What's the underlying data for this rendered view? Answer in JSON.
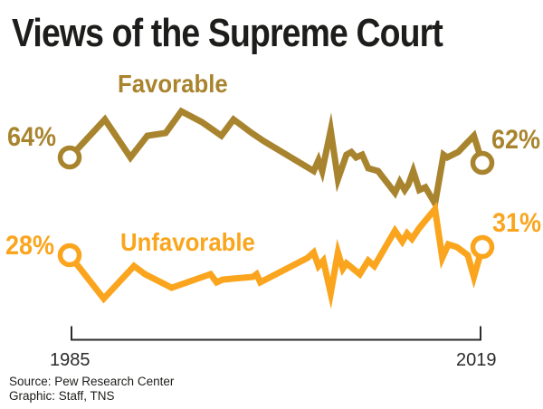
{
  "title": "Views of the Supreme Court",
  "labels": {
    "favorable": "Favorable",
    "unfavorable": "Unfavorable",
    "fav_start": "64%",
    "fav_end": "62%",
    "unfav_start": "28%",
    "unfav_end": "31%",
    "x_start": "1985",
    "x_end": "2019"
  },
  "source": {
    "line1": "Source: Pew Research Center",
    "line2": "Graphic: Staff, TNS"
  },
  "colors": {
    "favorable": "#a9842e",
    "unfavorable": "#faa51d",
    "axis": "#2b2b2b",
    "text": "#1d1d1b"
  },
  "chart_data": {
    "type": "line",
    "title": "Views of the Supreme Court",
    "x_range": [
      1985,
      2019
    ],
    "x_ticks": [
      "1985",
      "2019"
    ],
    "y_unit": "percent favorable/unfavorable opinion",
    "grid": false,
    "legend_position": "inline-labels",
    "endpoint_markers": "open-circle",
    "series": [
      {
        "name": "Favorable",
        "color": "#a9842e",
        "start_label": "64%",
        "end_label": "62%",
        "points": [
          [
            1985,
            64
          ],
          [
            1987.9,
            78
          ],
          [
            1990,
            64
          ],
          [
            1991.4,
            72
          ],
          [
            1992.9,
            73
          ],
          [
            1994.2,
            81
          ],
          [
            1995.9,
            77
          ],
          [
            1997.5,
            72
          ],
          [
            1998.5,
            78
          ],
          [
            2000,
            73
          ],
          [
            2001,
            70
          ],
          [
            2005.1,
            59
          ],
          [
            2005.5,
            63
          ],
          [
            2005.8,
            59
          ],
          [
            2006.5,
            74
          ],
          [
            2007.1,
            56
          ],
          [
            2007.8,
            65
          ],
          [
            2008.2,
            66
          ],
          [
            2008.6,
            64
          ],
          [
            2009.1,
            65
          ],
          [
            2009.6,
            60
          ],
          [
            2010.4,
            59
          ],
          [
            2011.8,
            51
          ],
          [
            2012.2,
            55
          ],
          [
            2012.6,
            52
          ],
          [
            2012.9,
            54
          ],
          [
            2013.3,
            59
          ],
          [
            2013.8,
            52
          ],
          [
            2014.3,
            53
          ],
          [
            2015.1,
            47
          ],
          [
            2015.8,
            65
          ],
          [
            2016.1,
            64
          ],
          [
            2017,
            66
          ],
          [
            2018.3,
            72
          ],
          [
            2019,
            62
          ]
        ]
      },
      {
        "name": "Unfavorable",
        "color": "#faa51d",
        "start_label": "28%",
        "end_label": "31%",
        "points": [
          [
            1985,
            28
          ],
          [
            1987.8,
            12
          ],
          [
            1990.3,
            24
          ],
          [
            1991.2,
            21
          ],
          [
            1993.4,
            16
          ],
          [
            1996.6,
            21
          ],
          [
            1997.1,
            18
          ],
          [
            1997.6,
            19
          ],
          [
            2000.1,
            20
          ],
          [
            2000.4,
            21
          ],
          [
            2000.7,
            18
          ],
          [
            2004.6,
            27
          ],
          [
            2005.1,
            29
          ],
          [
            2005.5,
            24
          ],
          [
            2005.9,
            26
          ],
          [
            2006.5,
            14
          ],
          [
            2007.1,
            29
          ],
          [
            2007.5,
            23
          ],
          [
            2007.8,
            25
          ],
          [
            2008.9,
            21
          ],
          [
            2009.6,
            26
          ],
          [
            2010.1,
            24
          ],
          [
            2011.8,
            37
          ],
          [
            2012.4,
            33
          ],
          [
            2012.8,
            36
          ],
          [
            2013.2,
            34
          ],
          [
            2013.8,
            38
          ],
          [
            2015.1,
            45
          ],
          [
            2015.7,
            27
          ],
          [
            2016.2,
            32
          ],
          [
            2016.9,
            31
          ],
          [
            2017.8,
            28
          ],
          [
            2018.3,
            20
          ],
          [
            2019,
            31
          ]
        ]
      }
    ]
  }
}
